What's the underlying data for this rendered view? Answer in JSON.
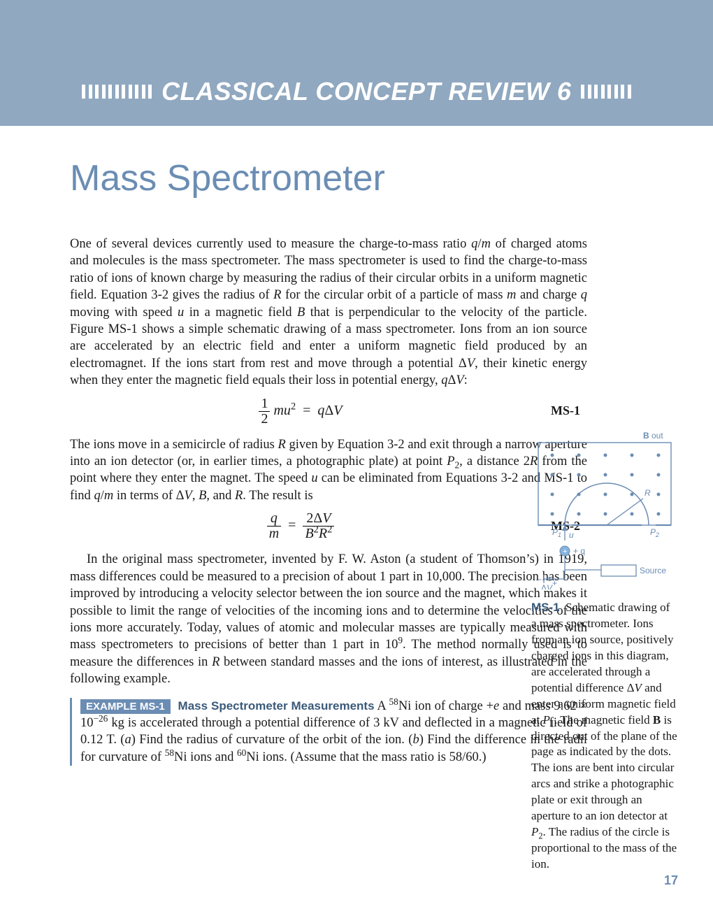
{
  "header": {
    "title": "CLASSICAL CONCEPT REVIEW 6"
  },
  "title": "Mass Spectrometer",
  "para1_html": "One of several devices currently used to measure the charge-to-mass ratio <i>q</i>/<i>m</i> of charged atoms and molecules is the mass spectrometer. The mass spectrometer is used to find the charge-to-mass ratio of ions of known charge by measuring the radius of their circular orbits in a uniform magnetic field. Equation 3-2 gives the radius of <i>R</i> for the circular orbit of a particle of mass <i>m</i> and charge <i>q</i> moving with speed <i>u</i> in a magnetic field <i>B</i> that is perpendicular to the velocity of the particle. Figure MS-1 shows a simple schematic drawing of a mass spectrometer. Ions from an ion source are accelerated by an electric field and enter a uniform magnetic field produced by an electromagnet. If the ions start from rest and move through a potential &Delta;<i>V</i>, their kinetic energy when they enter the magnetic field equals their loss in potential energy, <i>q</i>&Delta;<i>V</i>:",
  "eq1": {
    "tag": "MS-1"
  },
  "para2_html": "The ions move in a semicircle of radius <i>R</i> given by Equation 3-2 and exit through a narrow aperture into an ion detector (or, in earlier times, a photographic plate) at point <i>P</i><sub>2</sub>, a distance 2<i>R</i> from the point where they enter the magnet. The speed <i>u</i> can be eliminated from Equations 3-2 and MS-1 to find <i>q</i>/<i>m</i> in terms of &Delta;<i>V</i>, <i>B</i>, and <i>R</i>. The result is",
  "eq2": {
    "tag": "MS-2"
  },
  "para3_html": "In the original mass spectrometer, invented by F. W. Aston (a student of Thomson&rsquo;s) in 1919, mass differences could be measured to a precision of about 1 part in 10,000. The precision has been improved by introducing a velocity selector between the ion source and the magnet, which makes it possible to limit the range of velocities of the incoming ions and to determine the velocities of the ions more accurately. Today, values of atomic and molecular masses are typically measured with mass spectrometers to precisions of better than 1 part in 10<sup>9</sup>. The method normally used is to measure the differences in <i>R</i> between standard masses and the ions of interest, as illustrated in the following example.",
  "example": {
    "label": "EXAMPLE MS-1",
    "title": "Mass Spectrometer Measurements",
    "body_html": "A <sup>58</sup>Ni ion of charge +<i>e</i> and mass 9.62 &times; 10<sup>&minus;26</sup> kg is accelerated through a potential difference of 3 kV and deflected in a magnetic field of 0.12 T. (<i>a</i>) Find the radius of curvature of the orbit of the ion. (<i>b</i>) Find the difference in the radii for curvature of <sup>58</sup>Ni ions and <sup>60</sup>Ni ions. (Assume that the mass ratio is 58/60.)"
  },
  "figure": {
    "label": "MS-1",
    "caption_html": "Schematic drawing of a mass spectrometer. Ions from an ion source, positively charged ions in this diagram, are accelerated through a potential difference &Delta;<i>V</i> and enter a uniform magnetic field at <i>P</i><sub>1</sub>. The magnetic field <b>B</b> is directed out of the plane of the page as indicated by the dots. The ions are bent into circular arcs and strike a photographic plate or exit through an aperture to an ion detector at <i>P</i><sub>2</sub>. The radius of the circle is proportional to the mass of the ion.",
    "labels": {
      "B_out": "B out",
      "R": "R",
      "P1": "P",
      "P2": "P",
      "u": "u",
      "plus_q": "+ q",
      "source": "Source",
      "deltaV": "ΔV"
    },
    "colors": {
      "line": "#6b8db3",
      "dot": "#6b8db3",
      "plus_fill": "#86b2de"
    }
  },
  "page_number": "17"
}
